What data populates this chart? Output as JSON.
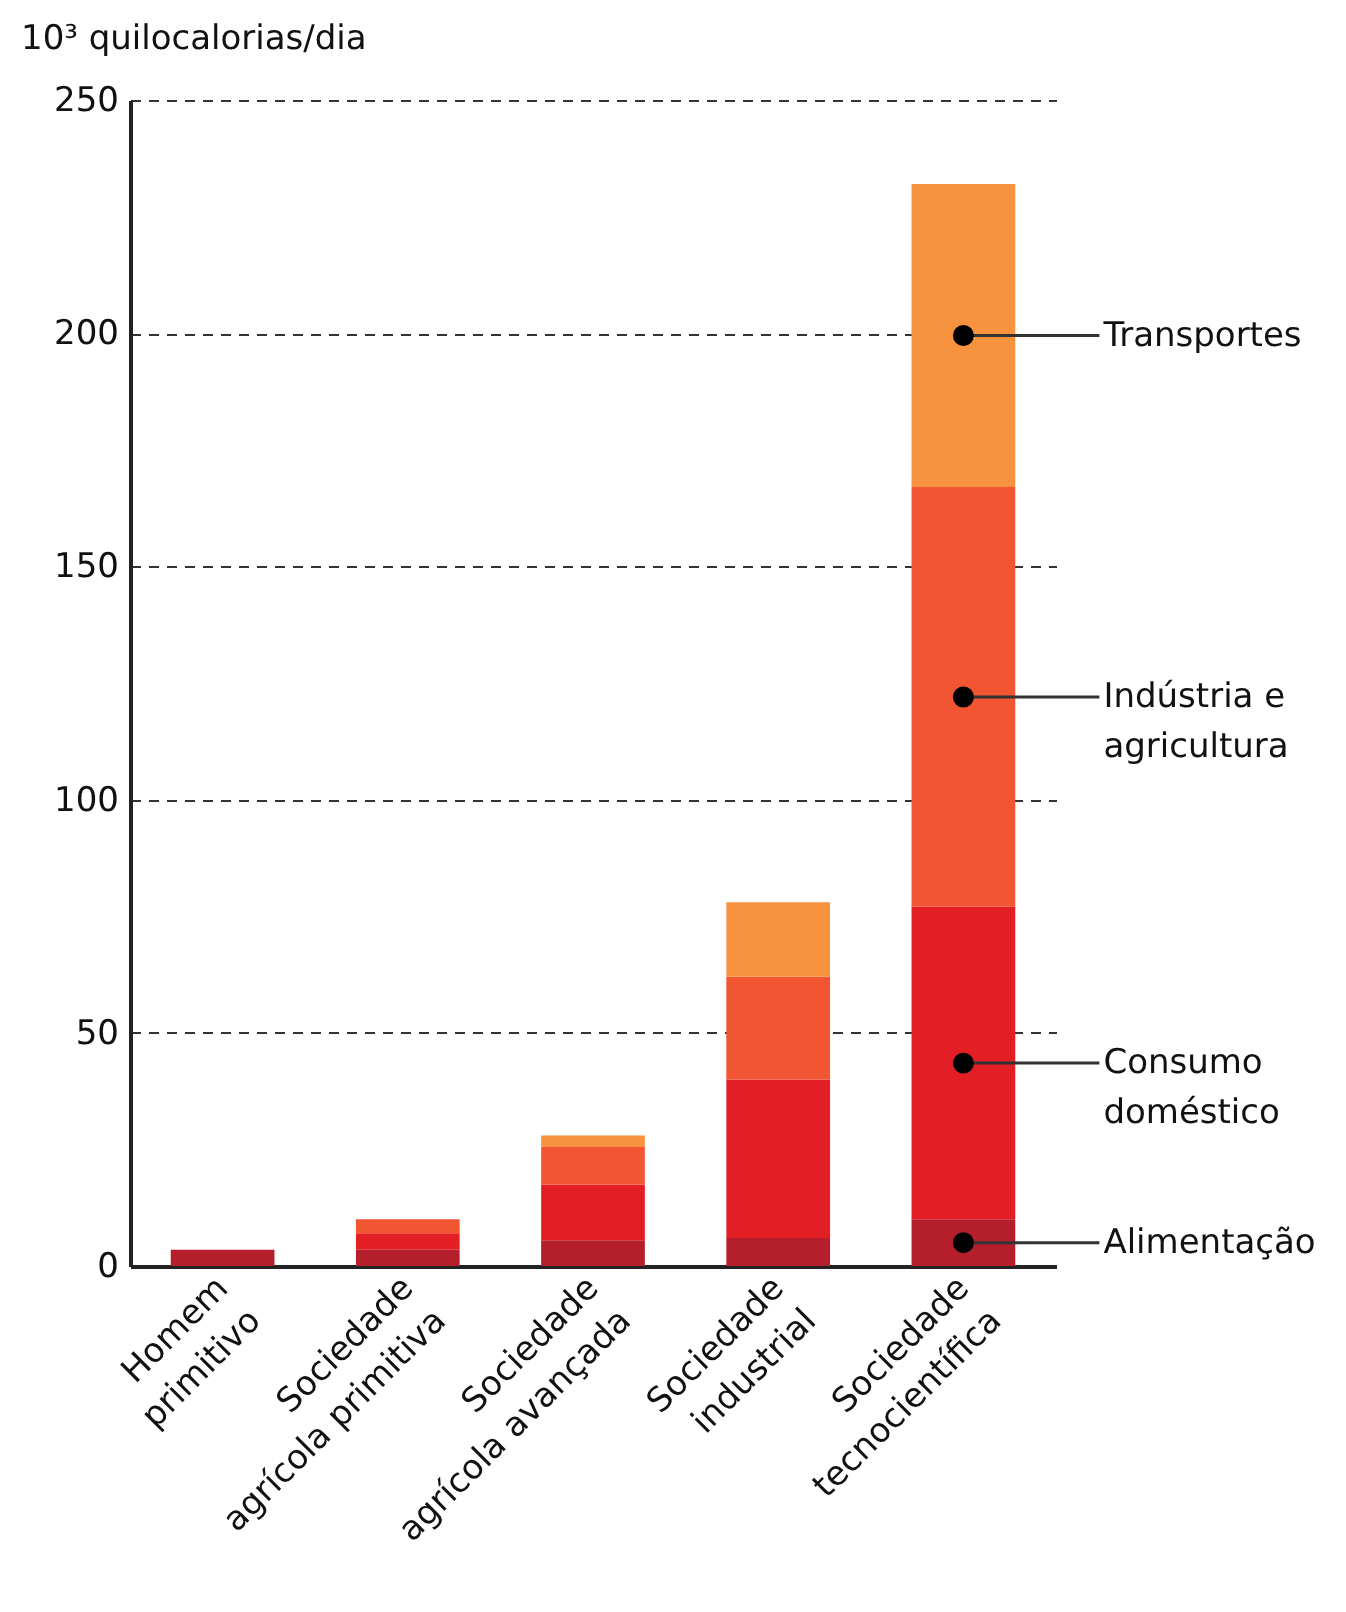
{
  "chart_data": {
    "type": "bar",
    "stacked": true,
    "ylabel": "10³ quilocalorias/dia",
    "categories": [
      "Homem primitivo",
      "Sociedade agrícola primitiva",
      "Sociedade agrícola avançada",
      "Sociedade industrial",
      "Sociedade tecnocientífica"
    ],
    "series": [
      {
        "name": "Alimentação",
        "color": "#b41f2b",
        "values": [
          3.5,
          3.5,
          5.5,
          6,
          10
        ]
      },
      {
        "name": "Consumo doméstico",
        "color": "#e31f26",
        "values": [
          0,
          3.5,
          12,
          34,
          67
        ]
      },
      {
        "name": "Indústria e agricultura",
        "color": "#f15532",
        "values": [
          0,
          3,
          8,
          22,
          90
        ]
      },
      {
        "name": "Transportes",
        "color": "#f7923e",
        "values": [
          0,
          0,
          2.5,
          16,
          65
        ]
      }
    ],
    "ylim": [
      0,
      250
    ],
    "yticks": [
      0,
      50,
      100,
      150,
      200,
      250
    ],
    "grid": "y"
  }
}
